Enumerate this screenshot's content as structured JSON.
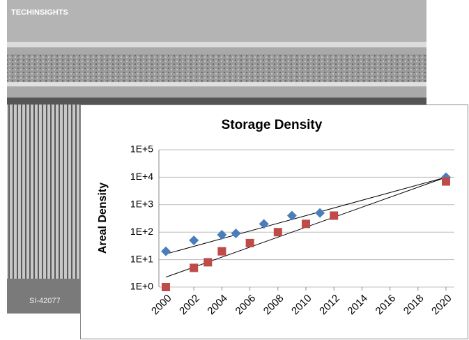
{
  "image_texts": {
    "logo": "TECHINSIGHTS",
    "sample_id": "SI-42077"
  },
  "chart_data": {
    "type": "scatter",
    "title": "Storage Density",
    "y_label": "Areal Density",
    "log_y": true,
    "grid": true,
    "xlim": [
      2000,
      2020
    ],
    "xticks": [
      2000,
      2002,
      2004,
      2006,
      2008,
      2010,
      2012,
      2014,
      2016,
      2018,
      2020
    ],
    "ylim": [
      1,
      100000
    ],
    "yticks": [
      {
        "value": 1,
        "label": "1E+0"
      },
      {
        "value": 10,
        "label": "1E+1"
      },
      {
        "value": 100,
        "label": "1E+2"
      },
      {
        "value": 1000,
        "label": "1E+3"
      },
      {
        "value": 10000,
        "label": "1E+4"
      },
      {
        "value": 100000,
        "label": "1E+5"
      }
    ],
    "series": [
      {
        "color": "#4a7ebb",
        "marker": "diamond",
        "x": [
          2000,
          2002,
          2004,
          2005,
          2007,
          2009,
          2011,
          2020
        ],
        "values": [
          20,
          50,
          80,
          90,
          200,
          400,
          500,
          10000
        ]
      },
      {
        "color": "#be4b48",
        "marker": "square",
        "x": [
          2000,
          2002,
          2003,
          2004,
          2006,
          2008,
          2010,
          2012,
          2020
        ],
        "values": [
          1,
          5,
          8,
          20,
          40,
          100,
          200,
          400,
          7000
        ]
      }
    ],
    "trendlines": [
      {
        "color": "#000000",
        "x": [
          2000,
          2020
        ],
        "values": [
          16,
          10000
        ]
      },
      {
        "color": "#000000",
        "x": [
          2000,
          2020
        ],
        "values": [
          2.3,
          10000
        ]
      }
    ]
  }
}
